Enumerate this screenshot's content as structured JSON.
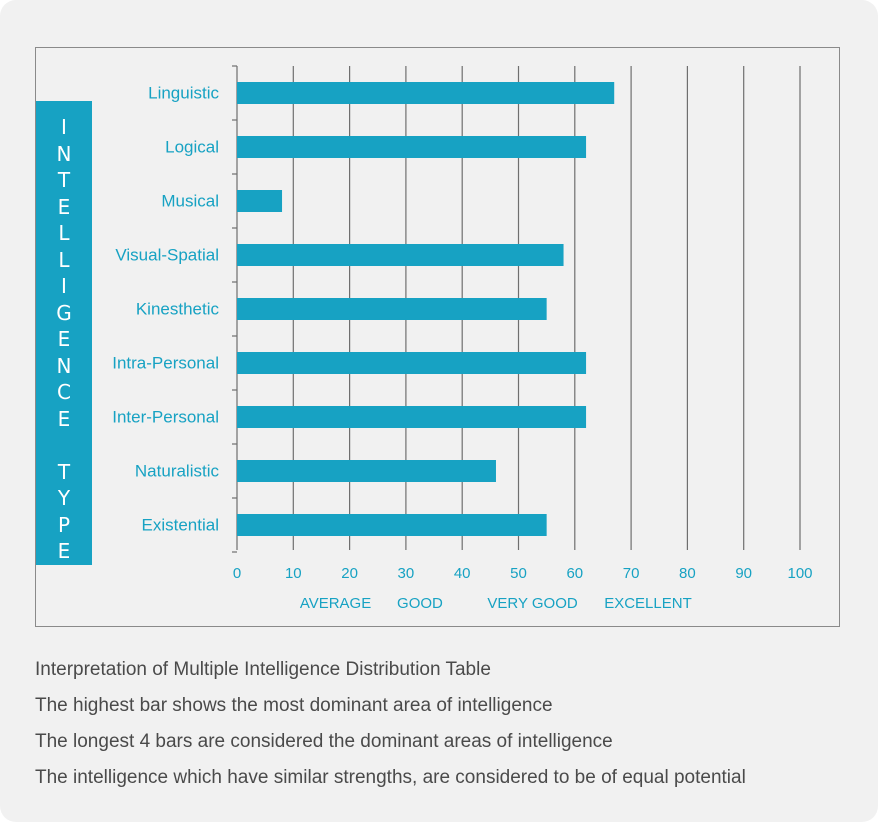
{
  "chart_data": {
    "type": "bar",
    "orientation": "horizontal",
    "categories": [
      "Linguistic",
      "Logical",
      "Musical",
      "Visual-Spatial",
      "Kinesthetic",
      "Intra-Personal",
      "Inter-Personal",
      "Naturalistic",
      "Existential"
    ],
    "values": [
      67,
      62,
      8,
      58,
      55,
      62,
      62,
      46,
      55
    ],
    "ylabel": "INTELLIGENCE TYPE",
    "xlim": [
      0,
      100
    ],
    "xticks": [
      0,
      10,
      20,
      30,
      40,
      50,
      60,
      70,
      80,
      90,
      100
    ],
    "grid": true,
    "color": "#17a2c3",
    "rating_labels": [
      {
        "text": "AVERAGE",
        "at": 17.5
      },
      {
        "text": "GOOD",
        "at": 32.5
      },
      {
        "text": "VERY GOOD",
        "at": 52.5
      },
      {
        "text": "EXCELLENT",
        "at": 73
      }
    ]
  },
  "interpretation": {
    "lines": [
      "Interpretation of Multiple Intelligence Distribution Table",
      "The highest bar shows the most dominant area of intelligence",
      "The longest 4 bars are considered the dominant areas of intelligence",
      "The intelligence which have similar strengths, are considered to be of equal potential"
    ]
  }
}
